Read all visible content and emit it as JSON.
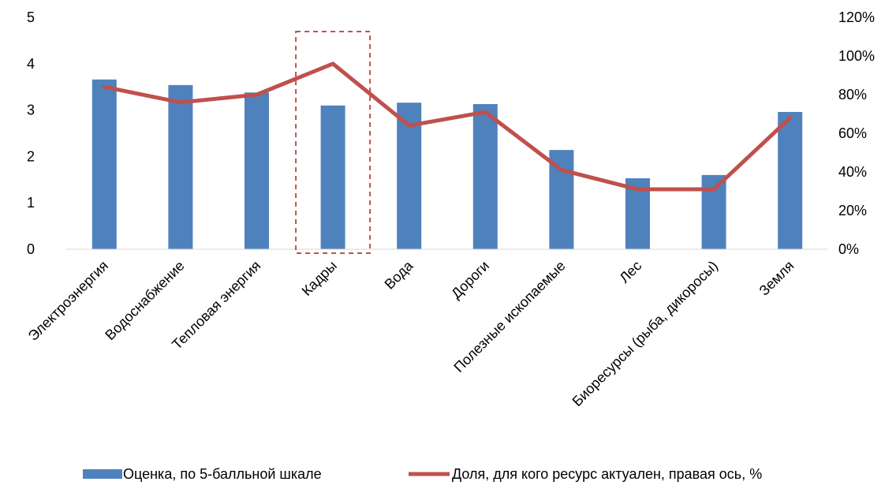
{
  "chart_data": {
    "type": "bar",
    "title": "",
    "categories": [
      "Электроэнергия",
      "Водоснабжение",
      "Тепловая энергия",
      "Кадры",
      "Вода",
      "Дороги",
      "Полезные ископаемые",
      "Лес",
      "Биоресурсы (рыба, дикоросы)",
      "Земля"
    ],
    "series": [
      {
        "name": "Оценка, по 5-балльной шкале",
        "type": "bar",
        "axis": "left",
        "color": "#4F81BD",
        "values": [
          3.66,
          3.54,
          3.38,
          3.1,
          3.16,
          3.13,
          2.14,
          1.53,
          1.6,
          2.96
        ]
      },
      {
        "name": "Доля, для кого ресурс актуален, правая ось, %",
        "type": "line",
        "axis": "right",
        "color": "#C0504D",
        "values": [
          84,
          76,
          80,
          96,
          64,
          71,
          41,
          31,
          31,
          68
        ]
      }
    ],
    "y_left": {
      "min": 0,
      "max": 5,
      "ticks": [
        "0",
        "1",
        "2",
        "3",
        "4",
        "5"
      ]
    },
    "y_right": {
      "min": 0,
      "max": 120,
      "ticks": [
        "0%",
        "20%",
        "40%",
        "60%",
        "80%",
        "100%",
        "120%"
      ]
    },
    "highlight": {
      "category": "Кадры",
      "style": "dashed-box",
      "color": "#C0504D"
    },
    "grid": false,
    "legend": "bottom"
  }
}
